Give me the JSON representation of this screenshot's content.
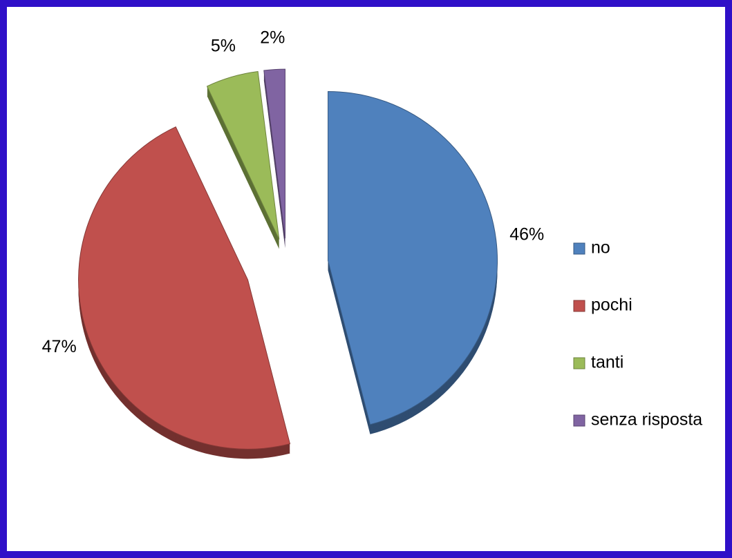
{
  "chart_data": {
    "type": "pie",
    "categories": [
      "no",
      "pochi",
      "tanti",
      "senza risposta"
    ],
    "values": [
      46,
      47,
      5,
      2
    ],
    "value_labels": [
      "46%",
      "47%",
      "5%",
      "2%"
    ],
    "colors": [
      "#4f81bd",
      "#c0504d",
      "#9bbb59",
      "#8064a2"
    ],
    "legend": "right"
  }
}
